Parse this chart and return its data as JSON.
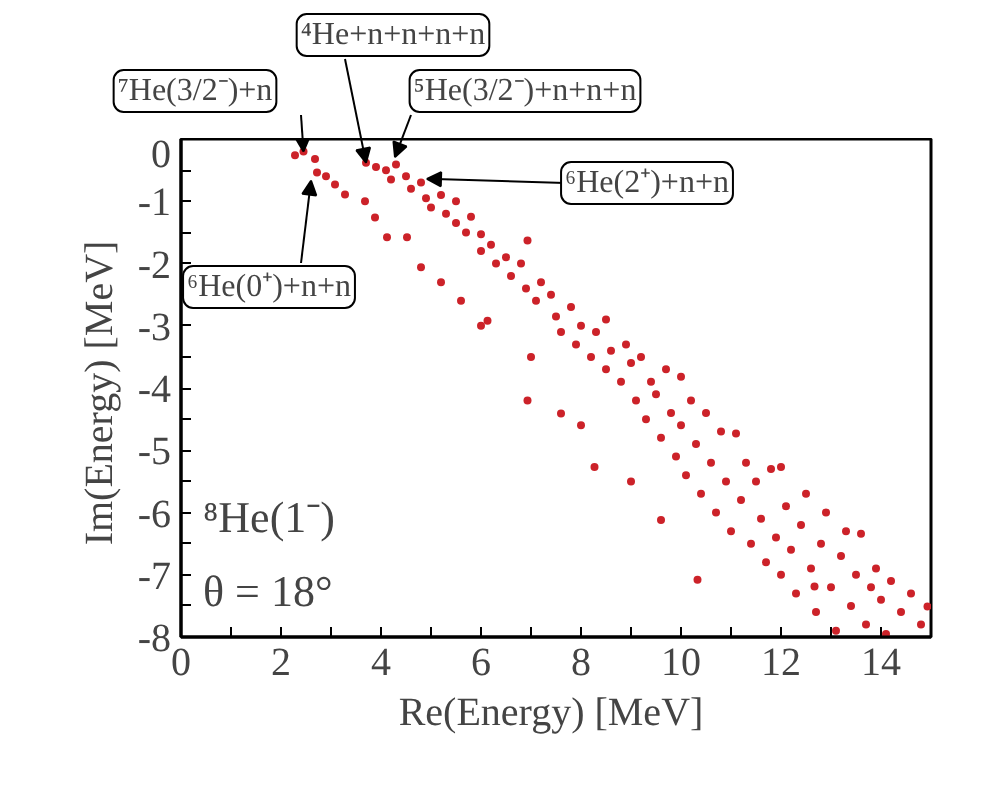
{
  "chart_data": {
    "type": "scatter",
    "xlabel": "Re(Energy)  [MeV]",
    "ylabel": "Im(Energy)  [MeV]",
    "xlim": [
      0,
      15
    ],
    "ylim": [
      -8,
      0
    ],
    "xticks": [
      0,
      {
        "value": 1,
        "label": null
      },
      2,
      {
        "value": 3,
        "label": null
      },
      4,
      {
        "value": 5,
        "label": null
      },
      6,
      {
        "value": 7,
        "label": null
      },
      8,
      {
        "value": 9,
        "label": null
      },
      10,
      {
        "value": 11,
        "label": null
      },
      12,
      {
        "value": 13,
        "label": null
      },
      14
    ],
    "yticks": [
      0,
      {
        "value": -0.5,
        "label": null
      },
      -1,
      {
        "value": -1.5,
        "label": null
      },
      -2,
      {
        "value": -2.5,
        "label": null
      },
      -3,
      {
        "value": -3.5,
        "label": null
      },
      -4,
      {
        "value": -4.5,
        "label": null
      },
      -5,
      {
        "value": -5.5,
        "label": null
      },
      -6,
      {
        "value": -6.5,
        "label": null
      },
      -7,
      {
        "value": -7.5,
        "label": null
      },
      -8
    ],
    "grid": false,
    "marker": "circle",
    "annotations": [
      {
        "text": "⁷He(3/2⁻)+n",
        "x": 2.45,
        "y": -0.2
      },
      {
        "text": "⁴He+n+n+n+n",
        "x": 3.7,
        "y": -0.38
      },
      {
        "text": "⁵He(3/2⁻)+n+n+n",
        "x": 4.28,
        "y": -0.29
      },
      {
        "text": "⁶He(2⁺)+n+n",
        "x": 4.92,
        "y": -0.64
      },
      {
        "text": "⁶He(0⁺)+n+n",
        "x": 2.6,
        "y": -0.67
      },
      "⁸He(1⁻)",
      "θ = 18°"
    ],
    "series": [
      {
        "color": "#cc2229",
        "x": [
          2.28,
          2.45,
          2.68,
          2.72,
          2.9,
          3.08,
          3.28,
          3.68,
          3.88,
          4.12,
          4.52,
          4.8,
          3.7,
          3.9,
          4.1,
          4.3,
          4.2,
          4.5,
          4.6,
          4.8,
          4.9,
          5.0,
          5.2,
          5.3,
          5.5,
          5.5,
          5.7,
          5.8,
          6.0,
          6.0,
          6.2,
          6.3,
          6.5,
          6.6,
          6.8,
          6.9,
          6.93,
          7.1,
          7.2,
          7.4,
          7.5,
          7.6,
          7.8,
          7.9,
          8.0,
          8.2,
          8.3,
          8.5,
          8.5,
          8.6,
          8.8,
          8.9,
          9.0,
          9.1,
          9.2,
          9.3,
          9.4,
          9.5,
          9.6,
          9.7,
          9.8,
          9.9,
          10.0,
          10.0,
          10.1,
          10.2,
          10.3,
          10.4,
          10.5,
          10.6,
          10.7,
          10.8,
          10.9,
          11.0,
          11.1,
          11.2,
          11.3,
          11.4,
          11.5,
          11.6,
          11.7,
          11.8,
          11.9,
          12.0,
          12.0,
          12.1,
          12.2,
          12.3,
          12.4,
          12.5,
          12.6,
          12.7,
          12.8,
          12.9,
          13.0,
          13.1,
          13.2,
          13.3,
          13.4,
          13.5,
          13.6,
          13.7,
          13.8,
          13.9,
          14.0,
          14.1,
          14.2,
          14.4,
          14.6,
          14.8,
          14.93,
          6.13,
          6.93,
          7.6,
          8.27,
          9.6,
          10.33,
          12.67,
          6.0,
          5.2,
          5.6,
          7.0,
          8.0,
          9.0
        ],
        "values": [
          -0.26,
          -0.2,
          -0.32,
          -0.54,
          -0.6,
          -0.73,
          -0.89,
          -1.0,
          -1.26,
          -1.58,
          -1.58,
          -2.06,
          -0.38,
          -0.45,
          -0.5,
          -0.41,
          -0.65,
          -0.6,
          -0.8,
          -0.7,
          -0.95,
          -1.1,
          -0.9,
          -1.2,
          -1.0,
          -1.35,
          -1.5,
          -1.25,
          -1.53,
          -1.8,
          -1.7,
          -2.0,
          -1.9,
          -2.2,
          -2.0,
          -2.4,
          -1.63,
          -2.6,
          -2.3,
          -2.5,
          -2.85,
          -3.1,
          -2.7,
          -3.3,
          -3.0,
          -3.5,
          -3.1,
          -2.9,
          -3.7,
          -3.4,
          -3.9,
          -3.3,
          -3.6,
          -4.2,
          -3.5,
          -4.5,
          -3.9,
          -4.1,
          -4.8,
          -3.7,
          -4.4,
          -5.1,
          -3.82,
          -4.6,
          -5.4,
          -4.2,
          -4.9,
          -5.7,
          -4.4,
          -5.2,
          -6.0,
          -4.7,
          -5.5,
          -6.3,
          -4.73,
          -5.8,
          -5.2,
          -6.5,
          -5.5,
          -6.1,
          -6.8,
          -5.3,
          -6.4,
          -5.27,
          -7.0,
          -5.9,
          -6.6,
          -7.3,
          -6.2,
          -5.7,
          -6.9,
          -7.6,
          -6.5,
          -6.0,
          -7.2,
          -7.9,
          -6.7,
          -6.3,
          -7.5,
          -7.0,
          -6.34,
          -7.8,
          -7.2,
          -6.9,
          -7.4,
          -7.95,
          -7.1,
          -7.6,
          -7.3,
          -7.8,
          -7.51,
          -2.92,
          -4.2,
          -4.41,
          -5.27,
          -6.12,
          -7.08,
          -7.19,
          -3.0,
          -2.3,
          -2.6,
          -3.5,
          -4.6,
          -5.5
        ]
      }
    ]
  }
}
